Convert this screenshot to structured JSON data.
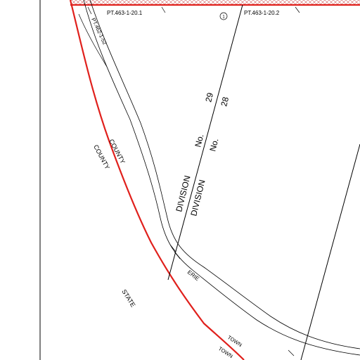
{
  "colors": {
    "boundary_red": "#e0201c",
    "line_black": "#000000",
    "hatch": "#d06060",
    "background": "#ffffff"
  },
  "parcels": {
    "pt_463_1_20_1": "PT.463-1-20.1",
    "pt_463_1_20_2": "PT.463-1-20.2",
    "pt_462_1_52": "PT.462-1-52"
  },
  "marker": {
    "number": "1"
  },
  "division_labels": {
    "left_word": "DIVISION",
    "left_no": "No.",
    "left_num": "29",
    "right_word": "DIVISION",
    "right_no": "No.",
    "right_num": "28"
  },
  "county_labels": {
    "outer": "COUNTY",
    "inner": "COUNTY"
  },
  "erie_label": "ERIE",
  "state_label": "STATE",
  "town_labels": {
    "upper": "TOWN",
    "lower": "TOWN"
  }
}
